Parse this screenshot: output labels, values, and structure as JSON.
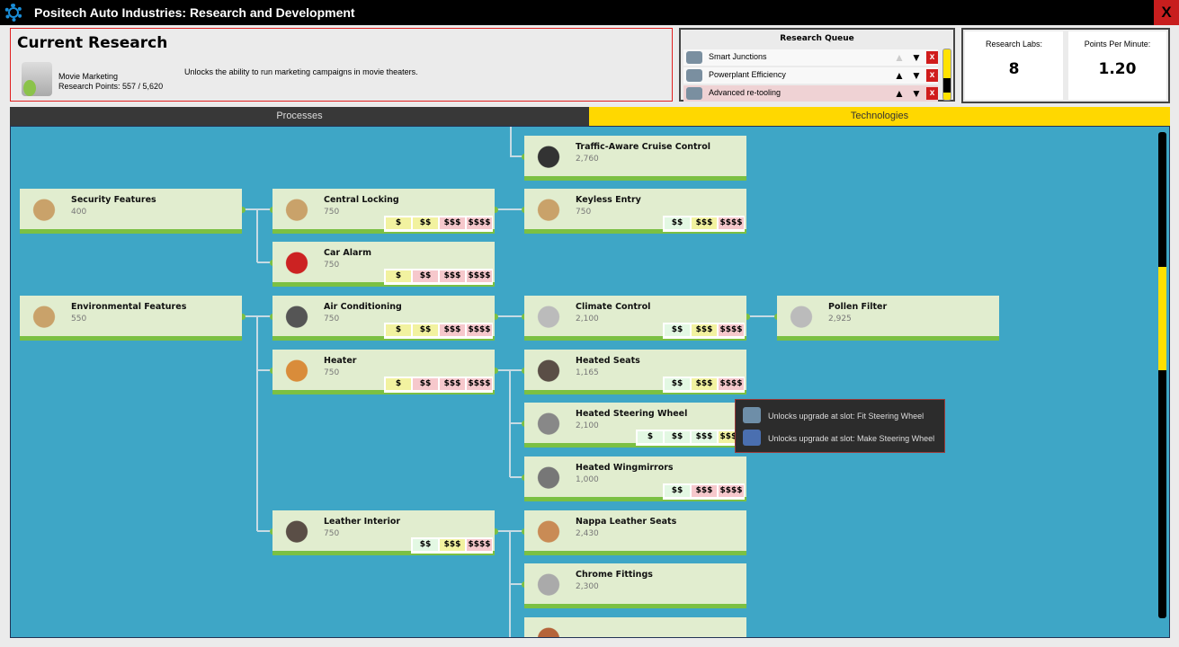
{
  "window": {
    "title": "Positech Auto Industries: Research and Development",
    "close_label": "X"
  },
  "current_research": {
    "heading": "Current Research",
    "name": "Movie Marketing",
    "points": "Research Points: 557 / 5,620",
    "description": "Unlocks the ability to run marketing campaigns in movie theaters."
  },
  "queue": {
    "heading": "Research Queue",
    "items": [
      {
        "name": "Smart Junctions",
        "up_enabled": false,
        "selected": false
      },
      {
        "name": "Powerplant Efficiency",
        "up_enabled": true,
        "selected": false
      },
      {
        "name": "Advanced re-tooling",
        "up_enabled": true,
        "selected": true
      }
    ],
    "up": "▲",
    "down": "▼",
    "remove": "x"
  },
  "stats": {
    "labs_label": "Research Labs:",
    "labs_value": "8",
    "ppm_label": "Points Per Minute:",
    "ppm_value": "1.20"
  },
  "tabs": [
    {
      "label": "Processes",
      "active": false
    },
    {
      "label": "Technologies",
      "active": true
    }
  ],
  "colors": {
    "accent": "#ffd800",
    "tree_bg": "#3ea6c6",
    "card_bg": "#e1edcf",
    "progress_green": "#7bc043",
    "tag_yellow": "#f2f2a0",
    "tag_pink": "#f6c8cc",
    "tag_green": "#e3f8e3"
  },
  "cards": [
    {
      "name": "Traffic-Aware Cruise Control",
      "cost": "2,760",
      "icon": "speedometer-icon",
      "tags": []
    },
    {
      "name": "Security Features",
      "cost": "400",
      "icon": "desk-icon",
      "tags": []
    },
    {
      "name": "Central Locking",
      "cost": "750",
      "icon": "desk-icon",
      "tags": [
        [
          "$",
          "y"
        ],
        [
          "$$",
          "y"
        ],
        [
          "$$$",
          "p"
        ],
        [
          "$$$$",
          "p"
        ]
      ]
    },
    {
      "name": "Keyless Entry",
      "cost": "750",
      "icon": "desk-icon",
      "tags": [
        [
          "$$",
          "g"
        ],
        [
          "$$$",
          "y"
        ],
        [
          "$$$$",
          "p"
        ]
      ]
    },
    {
      "name": "Car Alarm",
      "cost": "750",
      "icon": "alarm-icon",
      "tags": [
        [
          "$",
          "y"
        ],
        [
          "$$",
          "p"
        ],
        [
          "$$$",
          "p"
        ],
        [
          "$$$$",
          "p"
        ]
      ]
    },
    {
      "name": "Environmental Features",
      "cost": "550",
      "icon": "desk-icon",
      "tags": []
    },
    {
      "name": "Air Conditioning",
      "cost": "750",
      "icon": "air-conditioner-icon",
      "tags": [
        [
          "$",
          "y"
        ],
        [
          "$$",
          "y"
        ],
        [
          "$$$",
          "p"
        ],
        [
          "$$$$",
          "p"
        ]
      ]
    },
    {
      "name": "Climate Control",
      "cost": "2,100",
      "icon": "climate-unit-icon",
      "tags": [
        [
          "$$",
          "g"
        ],
        [
          "$$$",
          "y"
        ],
        [
          "$$$$",
          "p"
        ]
      ]
    },
    {
      "name": "Pollen Filter",
      "cost": "2,925",
      "icon": "filter-icon",
      "tags": []
    },
    {
      "name": "Heater",
      "cost": "750",
      "icon": "heater-icon",
      "tags": [
        [
          "$",
          "y"
        ],
        [
          "$$",
          "p"
        ],
        [
          "$$$",
          "p"
        ],
        [
          "$$$$",
          "p"
        ]
      ]
    },
    {
      "name": "Heated Seats",
      "cost": "1,165",
      "icon": "seat-icon",
      "tags": [
        [
          "$$",
          "g"
        ],
        [
          "$$$",
          "y"
        ],
        [
          "$$$$",
          "p"
        ]
      ]
    },
    {
      "name": "Heated Steering Wheel",
      "cost": "2,100",
      "icon": "steering-wheel-icon",
      "tags": [
        [
          "$",
          "g"
        ],
        [
          "$$",
          "g"
        ],
        [
          "$$$",
          "g"
        ],
        [
          "$$$$",
          "y"
        ]
      ]
    },
    {
      "name": "Heated Wingmirrors",
      "cost": "1,000",
      "icon": "mirror-icon",
      "tags": [
        [
          "$$",
          "g"
        ],
        [
          "$$$",
          "p"
        ],
        [
          "$$$$",
          "p"
        ]
      ]
    },
    {
      "name": "Leather Interior",
      "cost": "750",
      "icon": "seat-icon",
      "tags": [
        [
          "$$",
          "g"
        ],
        [
          "$$$",
          "y"
        ],
        [
          "$$$$",
          "p"
        ]
      ]
    },
    {
      "name": "Nappa Leather Seats",
      "cost": "2,430",
      "icon": "leather-seat-icon",
      "tags": []
    },
    {
      "name": "Chrome Fittings",
      "cost": "2,300",
      "icon": "chrome-bar-icon",
      "tags": []
    },
    {
      "name": "",
      "cost": "",
      "icon": "partial-icon",
      "tags": []
    }
  ],
  "tooltip": {
    "lines": [
      "Unlocks upgrade at slot: Fit Steering Wheel",
      "Unlocks upgrade at slot: Make Steering Wheel"
    ]
  }
}
